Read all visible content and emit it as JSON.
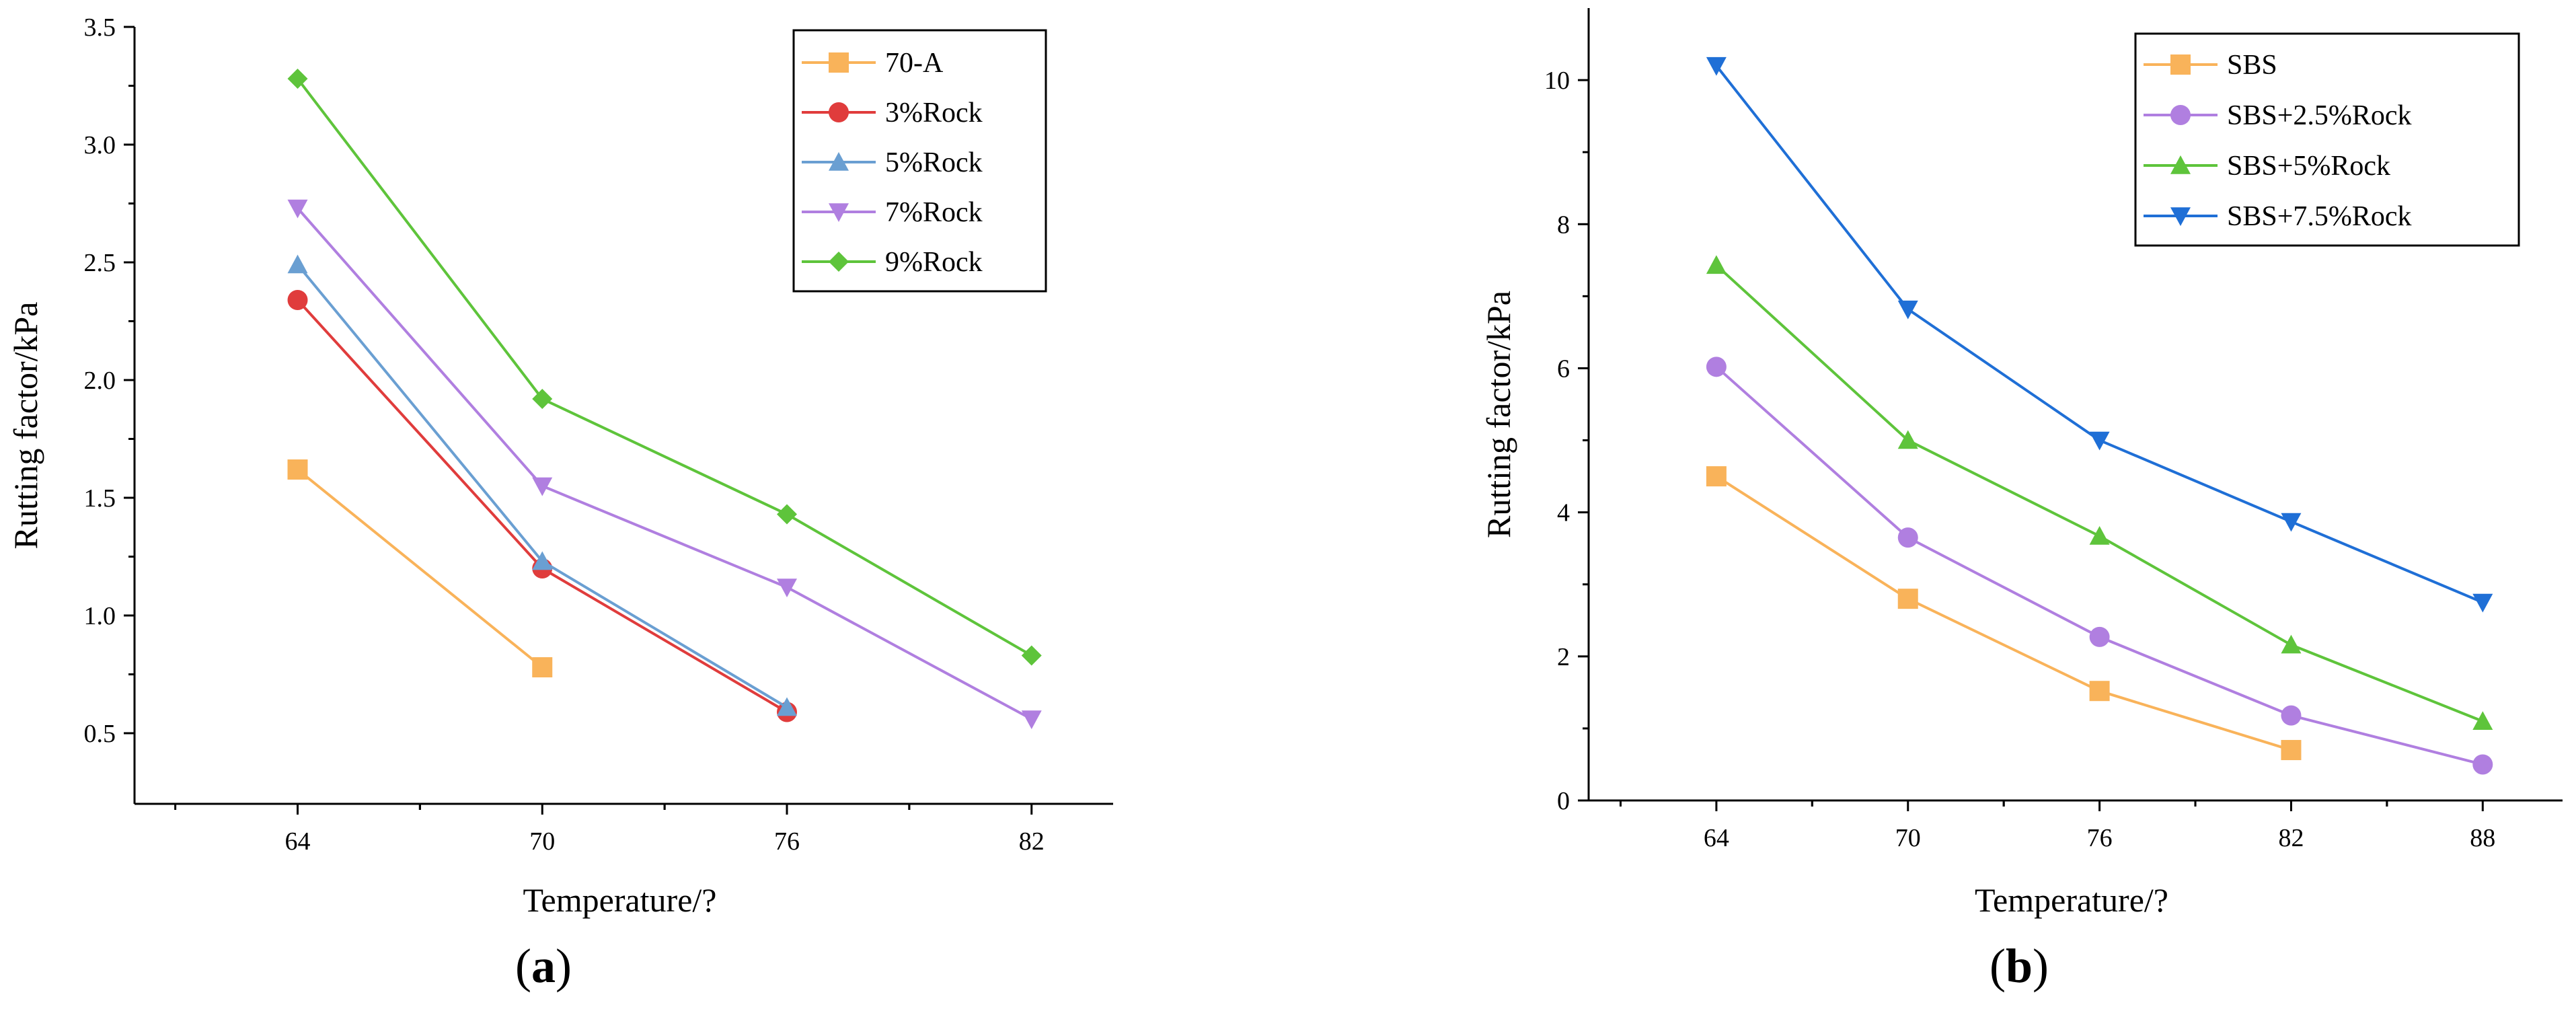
{
  "chart_data": [
    {
      "type": "line",
      "panel_label": "(a)",
      "panel_letter": "a",
      "xlabel": "Temperature/?",
      "ylabel": "Rutting factor/kPa",
      "categories": [
        64,
        70,
        76,
        82
      ],
      "xlim": [
        60,
        84
      ],
      "ylim": [
        0.2,
        3.5
      ],
      "yticks": [
        0.5,
        1.0,
        1.5,
        2.0,
        2.5,
        3.0,
        3.5
      ],
      "ytick_labels": [
        "0.5",
        "1.0",
        "1.5",
        "2.0",
        "2.5",
        "3.0",
        "3.5"
      ],
      "xtick_labels": [
        "64",
        "70",
        "76",
        "82"
      ],
      "legend_position": "top-right",
      "series": [
        {
          "name": "70-A",
          "color": "#f9b35a",
          "marker": "square",
          "x": [
            64,
            70
          ],
          "values": [
            1.62,
            0.78
          ]
        },
        {
          "name": "3%Rock",
          "color": "#e03c3c",
          "marker": "circle",
          "x": [
            64,
            70,
            76
          ],
          "values": [
            2.34,
            1.2,
            0.59
          ]
        },
        {
          "name": "5%Rock",
          "color": "#6a9fd2",
          "marker": "triangle-up",
          "x": [
            64,
            70,
            76
          ],
          "values": [
            2.49,
            1.23,
            0.61
          ]
        },
        {
          "name": "7%Rock",
          "color": "#b07fe0",
          "marker": "triangle-down",
          "x": [
            64,
            70,
            76,
            82
          ],
          "values": [
            2.73,
            1.55,
            1.12,
            0.56
          ]
        },
        {
          "name": "9%Rock",
          "color": "#5ec43b",
          "marker": "diamond",
          "x": [
            64,
            70,
            76,
            82
          ],
          "values": [
            3.28,
            1.92,
            1.43,
            0.83
          ]
        }
      ]
    },
    {
      "type": "line",
      "panel_label": "(b)",
      "panel_letter": "b",
      "xlabel": "Temperature/?",
      "ylabel": "Rutting factor/kPa",
      "categories": [
        64,
        70,
        76,
        82,
        88
      ],
      "xlim": [
        60,
        90.5
      ],
      "ylim": [
        0,
        11
      ],
      "yticks": [
        0,
        2,
        4,
        6,
        8,
        10
      ],
      "ytick_labels": [
        "0",
        "2",
        "4",
        "6",
        "8",
        "10"
      ],
      "xtick_labels": [
        "64",
        "70",
        "76",
        "82",
        "88"
      ],
      "legend_position": "top-right",
      "series": [
        {
          "name": "SBS",
          "color": "#f9b35a",
          "marker": "square",
          "x": [
            64,
            70,
            76,
            82
          ],
          "values": [
            4.5,
            2.8,
            1.52,
            0.7
          ]
        },
        {
          "name": "SBS+2.5%Rock",
          "color": "#b07fe0",
          "marker": "circle",
          "x": [
            64,
            70,
            76,
            82,
            88
          ],
          "values": [
            6.02,
            3.65,
            2.27,
            1.18,
            0.5
          ]
        },
        {
          "name": "SBS+5%Rock",
          "color": "#5ec43b",
          "marker": "triangle-up",
          "x": [
            64,
            70,
            76,
            82,
            88
          ],
          "values": [
            7.43,
            5.0,
            3.67,
            2.16,
            1.1
          ]
        },
        {
          "name": "SBS+7.5%Rock",
          "color": "#1f6fd6",
          "marker": "triangle-down",
          "x": [
            64,
            70,
            76,
            82,
            88
          ],
          "values": [
            10.2,
            6.82,
            5.0,
            3.87,
            2.75
          ]
        }
      ]
    }
  ]
}
